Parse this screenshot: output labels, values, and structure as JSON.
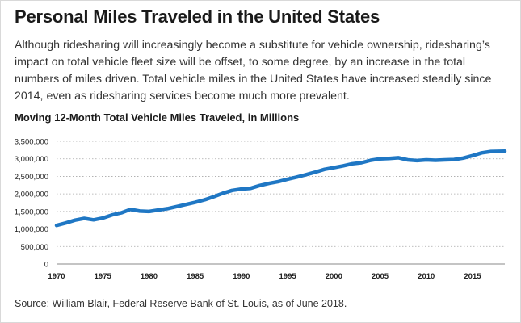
{
  "header": {
    "title": "Personal Miles Traveled in the United States",
    "intro": "Although ridesharing will increasingly become a substitute for vehicle ownership, ridesharing’s impact on total vehicle fleet size will be offset, to some degree, by an increase in the total numbers of miles driven. Total vehicle miles in the United States have increased steadily since 2014, even as ridesharing services become much more prevalent."
  },
  "footer": {
    "source": "Source: William Blair, Federal Reserve Bank of St. Louis, as of June 2018."
  },
  "chart_data": {
    "type": "line",
    "title": "Moving 12-Month Total Vehicle Miles Traveled, in Millions",
    "xlabel": "",
    "ylabel": "",
    "xlim": [
      1970,
      2018.5
    ],
    "ylim": [
      0,
      3500000
    ],
    "x_ticks": [
      1970,
      1975,
      1980,
      1985,
      1990,
      1995,
      2000,
      2005,
      2010,
      2015
    ],
    "x_tick_labels": [
      "1970",
      "1975",
      "1980",
      "1985",
      "1990",
      "1995",
      "2000",
      "2005",
      "2010",
      "2015"
    ],
    "y_ticks": [
      0,
      500000,
      1000000,
      1500000,
      2000000,
      2500000,
      3000000,
      3500000
    ],
    "y_tick_labels": [
      "0",
      "500,000",
      "1,000,000",
      "1,500,000",
      "2,000,000",
      "2,500,000",
      "3,000,000",
      "3,500,000"
    ],
    "grid": "horizontal-dotted",
    "legend": "none",
    "color": "#1f77c4",
    "series": [
      {
        "x": [
          1970,
          1971,
          1972,
          1973,
          1974,
          1975,
          1976,
          1977,
          1978,
          1979,
          1980,
          1981,
          1982,
          1983,
          1984,
          1985,
          1986,
          1987,
          1988,
          1989,
          1990,
          1991,
          1992,
          1993,
          1994,
          1995,
          1996,
          1997,
          1998,
          1999,
          2000,
          2001,
          2002,
          2003,
          2004,
          2005,
          2006,
          2007,
          2008,
          2009,
          2010,
          2011,
          2012,
          2013,
          2014,
          2015,
          2016,
          2017,
          2018.5
        ],
        "values": [
          1100000,
          1170000,
          1250000,
          1300000,
          1260000,
          1310000,
          1400000,
          1460000,
          1560000,
          1510000,
          1500000,
          1540000,
          1580000,
          1640000,
          1700000,
          1760000,
          1830000,
          1920000,
          2020000,
          2100000,
          2140000,
          2160000,
          2240000,
          2300000,
          2350000,
          2420000,
          2480000,
          2550000,
          2620000,
          2700000,
          2750000,
          2800000,
          2860000,
          2890000,
          2960000,
          3000000,
          3010000,
          3030000,
          2970000,
          2950000,
          2970000,
          2960000,
          2970000,
          2980000,
          3020000,
          3090000,
          3170000,
          3210000,
          3220000
        ]
      }
    ]
  }
}
